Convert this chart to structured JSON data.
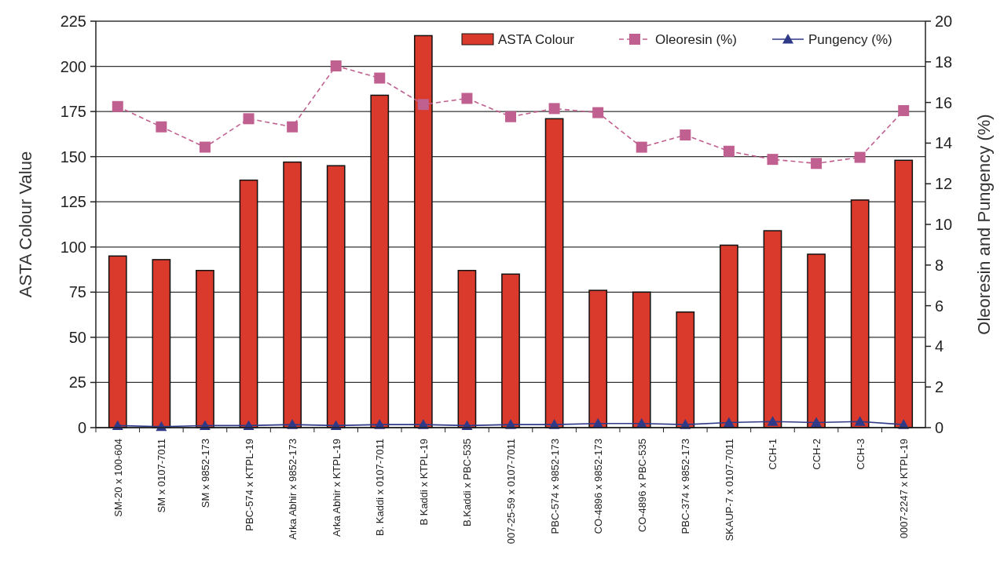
{
  "chart_data": {
    "type": "bar",
    "ylabel": "ASTA Colour Value",
    "y2label": "Oleoresin and Pungency (%)",
    "categories": [
      "SM-20 x 100-604",
      "SM x 0107-7011",
      "SM x 9852-173",
      "PBC-574 x KTPL-19",
      "Arka Abhir x 9852-173",
      "Arka Abhir x KTPL-19",
      "B. Kaddi x 0107-7011",
      "B Kaddi x KTPL-19",
      "B.Kaddi x PBC-535",
      "007-25-59 x 0107-7011",
      "PBC-574 x 9852-173",
      "CO-4896 x 9852-173",
      "CO-4896 x PBC-535",
      "PBC-374 x 9852-173",
      "SKAUP-7 x 0107-7011",
      "CCH-1",
      "CCH-2",
      "CCH-3",
      "0007-2247 x KTPL-19"
    ],
    "series": [
      {
        "name": "ASTA Colour",
        "color": "#d93a2b",
        "values": [
          95,
          93,
          87,
          137,
          147,
          145,
          184,
          217,
          87,
          85,
          171,
          76,
          75,
          64,
          101,
          109,
          96,
          126,
          148
        ]
      },
      {
        "name": "Oleoresin (%)",
        "type": "line",
        "axis": "y2",
        "marker": "square",
        "line_style": "dashed",
        "color": "#c06090",
        "values": [
          15.8,
          14.8,
          13.8,
          15.2,
          14.8,
          17.8,
          17.2,
          15.9,
          16.2,
          15.3,
          15.7,
          15.5,
          13.8,
          14.4,
          13.6,
          13.2,
          13.0,
          13.3,
          15.6
        ]
      },
      {
        "name": "Pungency (%)",
        "type": "line",
        "axis": "y2",
        "marker": "triangle",
        "line_style": "solid",
        "color": "#2e3a87",
        "values": [
          0.1,
          0.05,
          0.1,
          0.1,
          0.15,
          0.1,
          0.15,
          0.15,
          0.1,
          0.15,
          0.15,
          0.2,
          0.2,
          0.15,
          0.25,
          0.3,
          0.25,
          0.3,
          0.15
        ]
      }
    ],
    "ylim": [
      0,
      225
    ],
    "yticks": [
      0,
      25,
      50,
      75,
      100,
      125,
      150,
      175,
      200,
      225
    ],
    "y2lim": [
      0,
      20
    ],
    "y2ticks": [
      0,
      2,
      4,
      6,
      8,
      10,
      12,
      14,
      16,
      18,
      20
    ],
    "grid": "y",
    "legend": "top right"
  }
}
